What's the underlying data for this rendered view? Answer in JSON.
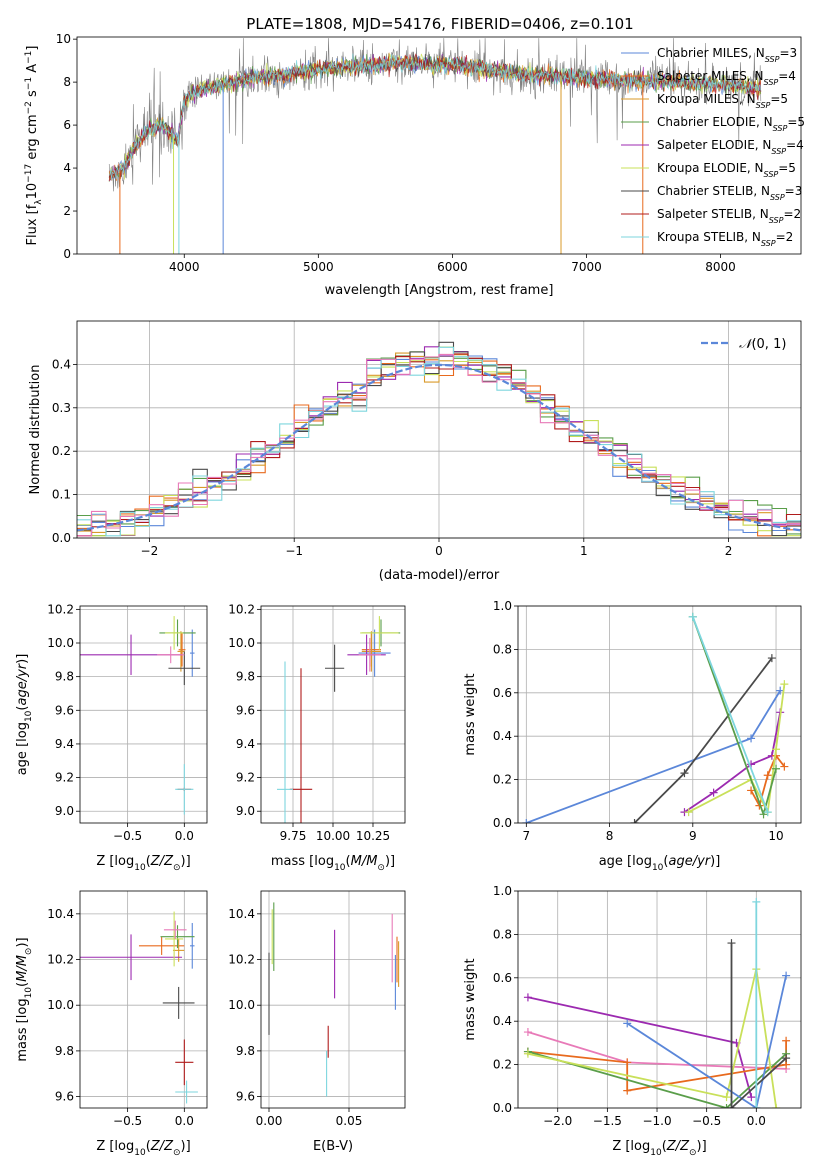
{
  "figure_title": "PLATE=1808, MJD=54176, FIBERID=0406, z=0.101",
  "colors": {
    "Chabrier MILES": "#5b87d9",
    "Salpeter MILES": "#e86a1e",
    "Kroupa MILES": "#d99a2a",
    "Chabrier ELODIE": "#5a9e4a",
    "Salpeter ELODIE": "#9c2ab0",
    "Kroupa ELODIE": "#c9e05a",
    "Chabrier STELIB": "#4a4a4a",
    "Salpeter STELIB": "#b01c1c",
    "Kroupa STELIB": "#7ed6de",
    "extra": "#e87ab8",
    "gauss": "#5b87d9"
  },
  "chart_data": [
    {
      "id": "spectrum",
      "type": "line",
      "xlabel": "wavelength [Angstrom, rest frame]",
      "ylabel": "Flux [f_λ 10^-17 erg cm^-2 s^-1 A^-1]",
      "xlim": [
        3200,
        8600
      ],
      "ylim": [
        0,
        10.1
      ],
      "xticks": [
        4000,
        5000,
        6000,
        7000,
        8000
      ],
      "yticks": [
        0,
        2,
        4,
        6,
        8,
        10
      ],
      "legend_position": "right",
      "series_names": [
        "Chabrier MILES, N_SSP=3",
        "Salpeter MILES, N_SSP=4",
        "Kroupa MILES, N_SSP=5",
        "Chabrier ELODIE, N_SSP=5",
        "Salpeter ELODIE, N_SSP=4",
        "Kroupa ELODIE, N_SSP=5",
        "Chabrier STELIB, N_SSP=3",
        "Salpeter STELIB, N_SSP=2",
        "Kroupa STELIB, N_SSP=2"
      ],
      "series_keys": [
        "Chabrier MILES",
        "Salpeter MILES",
        "Kroupa MILES",
        "Chabrier ELODIE",
        "Salpeter ELODIE",
        "Kroupa ELODIE",
        "Chabrier STELIB",
        "Salpeter STELIB",
        "Kroupa STELIB"
      ],
      "continuum": [
        [
          3440,
          3.6
        ],
        [
          3550,
          4.0
        ],
        [
          3650,
          5.2
        ],
        [
          3750,
          5.8
        ],
        [
          3850,
          6.0
        ],
        [
          3950,
          5.2
        ],
        [
          4000,
          7.2
        ],
        [
          4100,
          7.6
        ],
        [
          4300,
          7.9
        ],
        [
          4500,
          8.2
        ],
        [
          4800,
          8.4
        ],
        [
          5000,
          8.6
        ],
        [
          5200,
          8.7
        ],
        [
          5600,
          8.9
        ],
        [
          6000,
          8.8
        ],
        [
          6500,
          8.4
        ],
        [
          7000,
          8.2
        ],
        [
          7500,
          8.0
        ],
        [
          8000,
          7.9
        ],
        [
          8300,
          7.7
        ]
      ],
      "drops": [
        {
          "x": 3520,
          "series": "Salpeter MILES"
        },
        {
          "x": 3920,
          "series": "Kroupa ELODIE"
        },
        {
          "x": 3960,
          "series": "Kroupa STELIB"
        },
        {
          "x": 4290,
          "series": "Chabrier MILES"
        },
        {
          "x": 6810,
          "series": "Kroupa MILES"
        },
        {
          "x": 7420,
          "series": "Salpeter MILES"
        }
      ]
    },
    {
      "id": "residuals",
      "type": "line",
      "xlabel": "(data-model)/error",
      "ylabel": "Normed distribution",
      "xlim": [
        -2.5,
        2.5
      ],
      "ylim": [
        0,
        0.5
      ],
      "xticks": [
        -2,
        -1,
        0,
        1,
        2
      ],
      "yticks": [
        0.0,
        0.1,
        0.2,
        0.3,
        0.4
      ],
      "legend": "N(0,1)",
      "legend_position": "top-right",
      "bin_width": 0.1,
      "description": "step histograms of normalized residuals for 9 models plus a standard normal curve"
    },
    {
      "id": "age_vs_Z",
      "type": "scatter",
      "xlabel": "Z [log10(Z/Z☉)]",
      "ylabel": "age  [log10(age/yr)]",
      "xlim": [
        -0.92,
        0.2
      ],
      "ylim": [
        8.93,
        10.22
      ],
      "xticks": [
        -0.5,
        0.0
      ],
      "yticks": [
        9.0,
        9.2,
        9.4,
        9.6,
        9.8,
        10.0,
        10.2
      ],
      "points": [
        {
          "series": "Chabrier MILES",
          "x": 0.07,
          "y": 9.94,
          "xerr": 0.02,
          "yerr": 0.14
        },
        {
          "series": "Salpeter MILES",
          "x": -0.02,
          "y": 9.96,
          "xerr": 0.03,
          "yerr": 0.1
        },
        {
          "series": "Kroupa MILES",
          "x": -0.03,
          "y": 9.95,
          "xerr": 0.03,
          "yerr": 0.12
        },
        {
          "series": "Chabrier ELODIE",
          "x": -0.06,
          "y": 10.06,
          "xerr": 0.16,
          "yerr": 0.08
        },
        {
          "series": "Salpeter ELODIE",
          "x": -0.47,
          "y": 9.93,
          "xerr": 0.45,
          "yerr": 0.12
        },
        {
          "series": "Kroupa ELODIE",
          "x": -0.09,
          "y": 10.06,
          "xerr": 0.08,
          "yerr": 0.1
        },
        {
          "series": "Chabrier STELIB",
          "x": 0.0,
          "y": 9.85,
          "xerr": 0.14,
          "yerr": 0.1
        },
        {
          "series": "Salpeter STELIB",
          "x": 0.0,
          "y": 9.13,
          "xerr": 0.06,
          "yerr": 0.01
        },
        {
          "series": "Kroupa STELIB",
          "x": 0.0,
          "y": 9.13,
          "xerr": 0.08,
          "yerr": 0.15
        },
        {
          "series": "extra",
          "x": -0.12,
          "y": 9.93,
          "xerr": 0.12,
          "yerr": 0.05
        }
      ]
    },
    {
      "id": "age_vs_mass",
      "type": "scatter",
      "xlabel": "mass [log10(M/M☉)]",
      "ylabel": "",
      "xlim": [
        9.55,
        10.45
      ],
      "ylim": [
        8.93,
        10.22
      ],
      "xticks": [
        9.75,
        10.0,
        10.25
      ],
      "xtick_labels": [
        "9.75",
        "10.00",
        "10.25"
      ],
      "yticks": [
        9.0,
        9.2,
        9.4,
        9.6,
        9.8,
        10.0,
        10.2
      ],
      "points": [
        {
          "series": "Chabrier MILES",
          "x": 10.26,
          "y": 9.94,
          "xerr": 0.1,
          "yerr": 0.14
        },
        {
          "series": "Salpeter MILES",
          "x": 10.24,
          "y": 9.96,
          "xerr": 0.06,
          "yerr": 0.1
        },
        {
          "series": "Kroupa MILES",
          "x": 10.24,
          "y": 9.95,
          "xerr": 0.06,
          "yerr": 0.12
        },
        {
          "series": "Chabrier ELODIE",
          "x": 10.3,
          "y": 10.06,
          "xerr": 0.12,
          "yerr": 0.08
        },
        {
          "series": "Salpeter ELODIE",
          "x": 10.21,
          "y": 9.93,
          "xerr": 0.12,
          "yerr": 0.12
        },
        {
          "series": "Kroupa ELODIE",
          "x": 10.29,
          "y": 10.06,
          "xerr": 0.12,
          "yerr": 0.1
        },
        {
          "series": "Chabrier STELIB",
          "x": 10.01,
          "y": 9.85,
          "xerr": 0.06,
          "yerr": 0.14
        },
        {
          "series": "Salpeter STELIB",
          "x": 9.8,
          "y": 9.13,
          "xerr": 0.07,
          "yerr": 0.72
        },
        {
          "series": "Kroupa STELIB",
          "x": 9.7,
          "y": 9.13,
          "xerr": 0.05,
          "yerr": 0.76
        },
        {
          "series": "extra",
          "x": 10.23,
          "y": 9.93,
          "xerr": 0.07,
          "yerr": 0.1
        }
      ]
    },
    {
      "id": "massweight_vs_age",
      "type": "line",
      "xlabel": "age  [log10(age/yr)]",
      "ylabel": "mass weight",
      "xlim": [
        6.9,
        10.3
      ],
      "ylim": [
        0,
        1.0
      ],
      "xticks": [
        7,
        8,
        9,
        10
      ],
      "yticks": [
        0.0,
        0.2,
        0.4,
        0.6,
        0.8,
        1.0
      ],
      "series": [
        {
          "key": "Chabrier MILES",
          "points": [
            [
              7.0,
              0.0
            ],
            [
              9.7,
              0.39
            ],
            [
              10.05,
              0.61
            ]
          ]
        },
        {
          "key": "Chabrier STELIB",
          "points": [
            [
              8.3,
              0.0
            ],
            [
              8.9,
              0.23
            ],
            [
              9.95,
              0.76
            ]
          ]
        },
        {
          "key": "Salpeter ELODIE",
          "points": [
            [
              8.9,
              0.05
            ],
            [
              9.25,
              0.14
            ],
            [
              9.7,
              0.27
            ],
            [
              9.95,
              0.31
            ],
            [
              10.05,
              0.51
            ]
          ]
        },
        {
          "key": "Salpeter MILES",
          "points": [
            [
              9.7,
              0.15
            ],
            [
              9.8,
              0.08
            ],
            [
              9.9,
              0.22
            ],
            [
              10.0,
              0.31
            ],
            [
              10.1,
              0.26
            ]
          ]
        },
        {
          "key": "Kroupa ELODIE",
          "points": [
            [
              8.95,
              0.05
            ],
            [
              9.7,
              0.2
            ],
            [
              9.9,
              0.05
            ],
            [
              10.0,
              0.34
            ],
            [
              10.1,
              0.64
            ]
          ]
        },
        {
          "key": "Chabrier ELODIE",
          "points": [
            [
              9.0,
              0.95
            ],
            [
              9.85,
              0.04
            ],
            [
              10.0,
              0.25
            ]
          ]
        },
        {
          "key": "Kroupa STELIB",
          "points": [
            [
              9.0,
              0.95
            ],
            [
              9.9,
              0.05
            ]
          ]
        }
      ]
    },
    {
      "id": "mass_vs_Z",
      "type": "scatter",
      "xlabel": "Z [log10(Z/Z☉)]",
      "ylabel": "mass [log10(M/M☉)]",
      "xlim": [
        -0.92,
        0.2
      ],
      "ylim": [
        9.55,
        10.5
      ],
      "xticks": [
        -0.5,
        0.0
      ],
      "yticks": [
        9.6,
        9.8,
        10.0,
        10.2,
        10.4
      ],
      "points": [
        {
          "series": "Chabrier MILES",
          "x": 0.07,
          "y": 10.26,
          "xerr": 0.02,
          "yerr": 0.1
        },
        {
          "series": "Salpeter MILES",
          "x": -0.2,
          "y": 10.26,
          "xerr": 0.2,
          "yerr": 0.04
        },
        {
          "series": "Kroupa MILES",
          "x": -0.05,
          "y": 10.24,
          "xerr": 0.05,
          "yerr": 0.05
        },
        {
          "series": "Chabrier ELODIE",
          "x": -0.06,
          "y": 10.3,
          "xerr": 0.15,
          "yerr": 0.05
        },
        {
          "series": "Salpeter ELODIE",
          "x": -0.47,
          "y": 10.21,
          "xerr": 0.45,
          "yerr": 0.1
        },
        {
          "series": "Kroupa ELODIE",
          "x": -0.09,
          "y": 10.29,
          "xerr": 0.08,
          "yerr": 0.12
        },
        {
          "series": "Chabrier STELIB",
          "x": -0.05,
          "y": 10.01,
          "xerr": 0.14,
          "yerr": 0.07
        },
        {
          "series": "Salpeter STELIB",
          "x": 0.0,
          "y": 9.75,
          "xerr": 0.08,
          "yerr": 0.1
        },
        {
          "series": "Kroupa STELIB",
          "x": 0.02,
          "y": 9.62,
          "xerr": 0.1,
          "yerr": 0.05
        },
        {
          "series": "extra",
          "x": -0.08,
          "y": 10.33,
          "xerr": 0.1,
          "yerr": 0.04
        }
      ]
    },
    {
      "id": "mass_vs_EBV",
      "type": "scatter",
      "xlabel": "E(B-V)",
      "ylabel": "",
      "xlim": [
        -0.005,
        0.085
      ],
      "ylim": [
        9.55,
        10.5
      ],
      "xticks": [
        0.0,
        0.05
      ],
      "xtick_labels": [
        "0.00",
        "0.05"
      ],
      "yticks": [
        9.6,
        9.8,
        10.0,
        10.2,
        10.4
      ],
      "points": [
        {
          "series": "Chabrier MILES",
          "x": 0.079,
          "y": 10.1,
          "xerr": 0,
          "yerr": 0.12
        },
        {
          "series": "Salpeter MILES",
          "x": 0.08,
          "y": 10.2,
          "xerr": 0,
          "yerr": 0.1
        },
        {
          "series": "Kroupa MILES",
          "x": 0.081,
          "y": 10.18,
          "xerr": 0,
          "yerr": 0.1
        },
        {
          "series": "Chabrier ELODIE",
          "x": 0.003,
          "y": 10.3,
          "xerr": 0,
          "yerr": 0.15
        },
        {
          "series": "Salpeter ELODIE",
          "x": 0.041,
          "y": 10.18,
          "xerr": 0,
          "yerr": 0.15
        },
        {
          "series": "Kroupa ELODIE",
          "x": 0.002,
          "y": 10.3,
          "xerr": 0,
          "yerr": 0.12
        },
        {
          "series": "Chabrier STELIB",
          "x": 0.0,
          "y": 10.05,
          "xerr": 0,
          "yerr": 0.18
        },
        {
          "series": "Salpeter STELIB",
          "x": 0.037,
          "y": 9.84,
          "xerr": 0,
          "yerr": 0.07
        },
        {
          "series": "Kroupa STELIB",
          "x": 0.036,
          "y": 9.7,
          "xerr": 0,
          "yerr": 0.1
        },
        {
          "series": "extra",
          "x": 0.077,
          "y": 10.25,
          "xerr": 0,
          "yerr": 0.15
        }
      ]
    },
    {
      "id": "massweight_vs_Z",
      "type": "line",
      "xlabel": "Z [log10(Z/Z☉)]",
      "ylabel": "mass weight",
      "xlim": [
        -2.4,
        0.45
      ],
      "ylim": [
        0,
        1.0
      ],
      "xticks": [
        -2.0,
        -1.5,
        -1.0,
        -0.5,
        0.0
      ],
      "yticks": [
        0.0,
        0.2,
        0.4,
        0.6,
        0.8,
        1.0
      ],
      "series": [
        {
          "key": "Salpeter ELODIE",
          "points": [
            [
              -2.3,
              0.51
            ],
            [
              -0.2,
              0.3
            ],
            [
              -0.05,
              0.05
            ]
          ]
        },
        {
          "key": "extra",
          "points": [
            [
              -2.3,
              0.35
            ],
            [
              -1.3,
              0.21
            ],
            [
              0.3,
              0.18
            ]
          ]
        },
        {
          "key": "Salpeter MILES",
          "points": [
            [
              -2.3,
              0.26
            ],
            [
              -1.3,
              0.21
            ],
            [
              -1.3,
              0.08
            ],
            [
              0.3,
              0.2
            ],
            [
              0.3,
              0.31
            ]
          ]
        },
        {
          "key": "Chabrier ELODIE",
          "points": [
            [
              -2.3,
              0.26
            ],
            [
              -0.3,
              0.0
            ],
            [
              0.3,
              0.25
            ]
          ]
        },
        {
          "key": "Kroupa ELODIE",
          "points": [
            [
              -2.3,
              0.25
            ],
            [
              -0.3,
              0.05
            ],
            [
              0.0,
              0.64
            ],
            [
              0.2,
              0.0
            ]
          ]
        },
        {
          "key": "Chabrier MILES",
          "points": [
            [
              -1.3,
              0.39
            ],
            [
              0.0,
              0.0
            ],
            [
              0.3,
              0.61
            ]
          ]
        },
        {
          "key": "Chabrier STELIB",
          "points": [
            [
              -0.25,
              0.76
            ],
            [
              -0.25,
              0.0
            ],
            [
              0.3,
              0.23
            ]
          ]
        },
        {
          "key": "Kroupa STELIB",
          "points": [
            [
              -0.0,
              0.95
            ],
            [
              0.0,
              0.0
            ]
          ]
        }
      ]
    }
  ]
}
